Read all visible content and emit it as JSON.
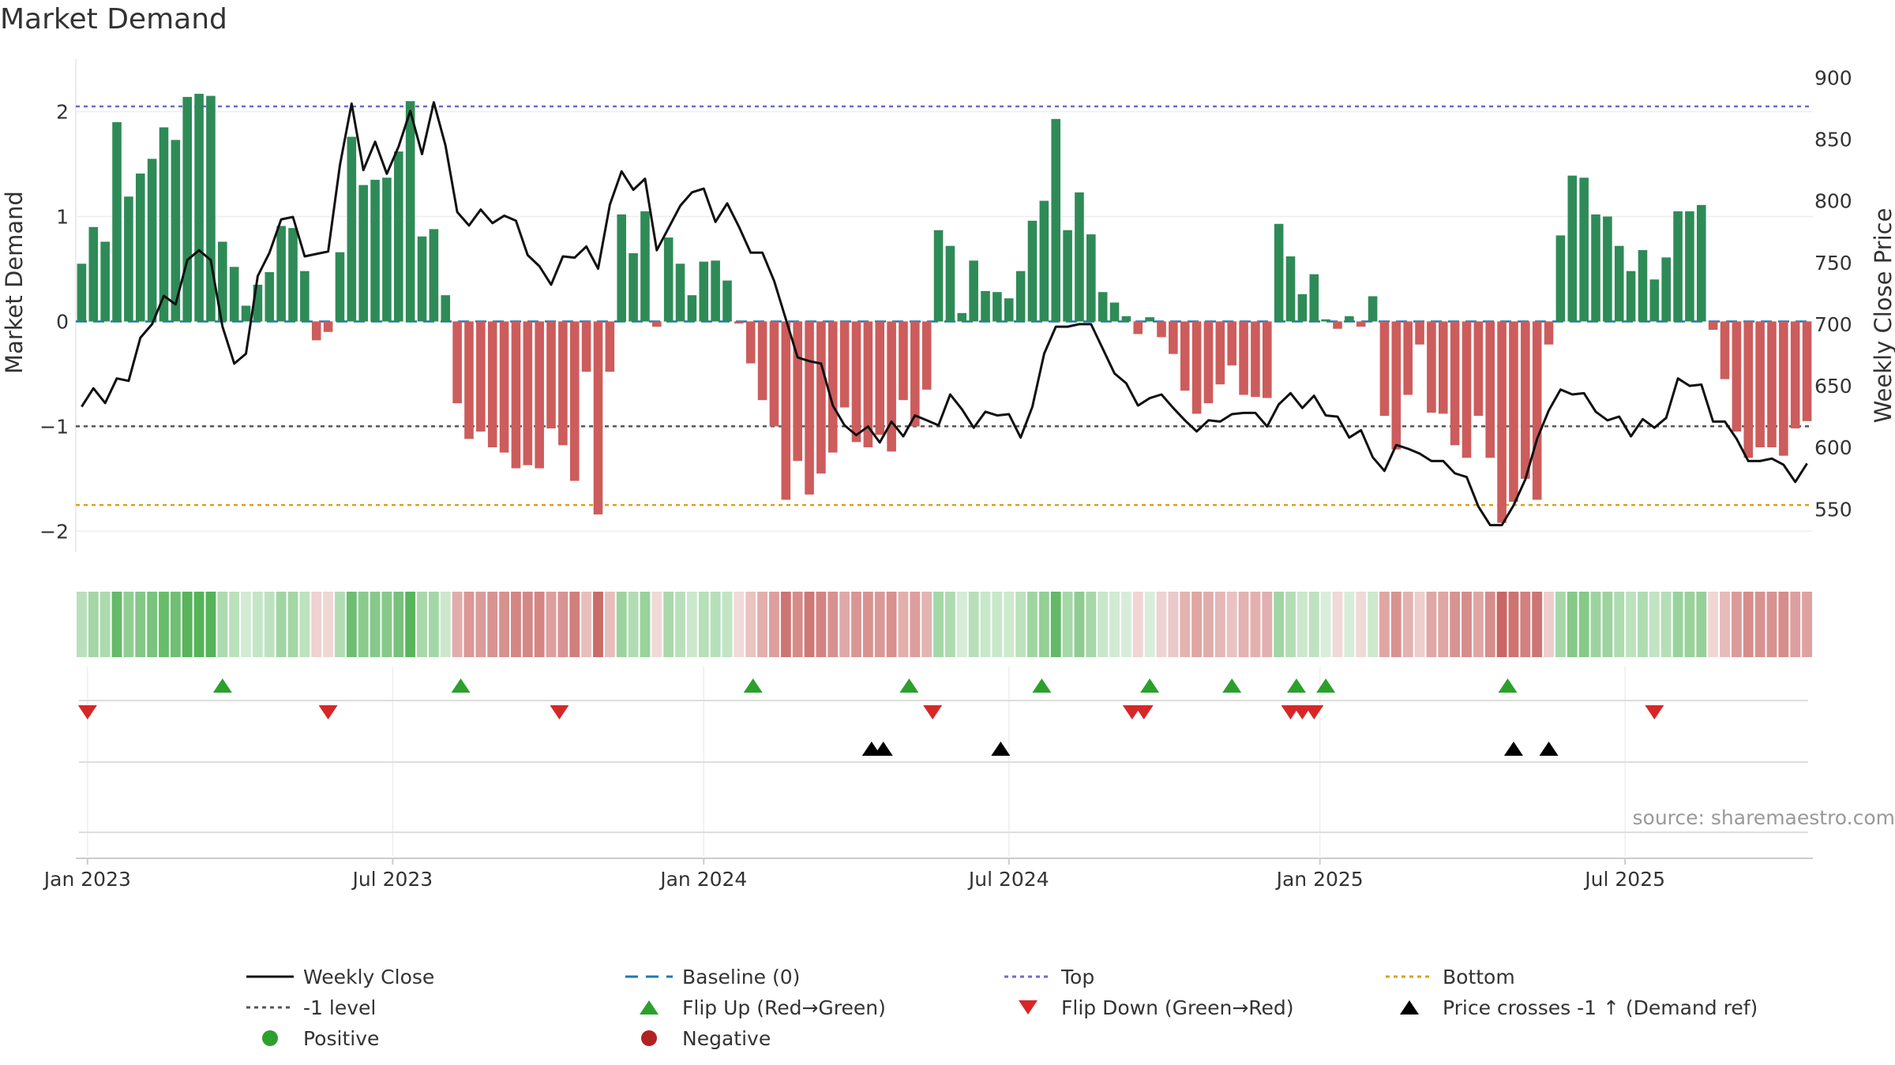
{
  "chart_data": {
    "type": "bar",
    "title": "Market Demand",
    "source": "source: sharemaestro.com",
    "ylabel": "Market Demand",
    "y2label": "Weekly Close Price",
    "ylim": [
      -2.2,
      2.5
    ],
    "y2lim": [
      515,
      915
    ],
    "yticks": [
      -2,
      -1,
      0,
      1,
      2
    ],
    "y2ticks": [
      550,
      600,
      650,
      700,
      750,
      800,
      850,
      900
    ],
    "x_ticks": [
      {
        "label": "Jan 2023",
        "week": 1
      },
      {
        "label": "Jul 2023",
        "week": 27
      },
      {
        "label": "Jan 2024",
        "week": 53.5
      },
      {
        "label": "Jul 2024",
        "week": 79.5
      },
      {
        "label": "Jan 2025",
        "week": 106
      },
      {
        "label": "Jul 2025",
        "week": 132
      }
    ],
    "levels": {
      "top": 2.05,
      "bottom": -1.75,
      "minus_one": -1.0,
      "baseline": 0
    },
    "demand": [
      0.55,
      0.9,
      0.76,
      1.9,
      1.19,
      1.41,
      1.55,
      1.85,
      1.73,
      2.14,
      2.17,
      2.15,
      0.76,
      0.52,
      0.15,
      0.35,
      0.47,
      0.91,
      0.89,
      0.48,
      -0.18,
      -0.1,
      0.66,
      1.76,
      1.3,
      1.35,
      1.37,
      1.62,
      2.1,
      0.81,
      0.88,
      0.25,
      -0.78,
      -1.12,
      -1.05,
      -1.2,
      -1.25,
      -1.4,
      -1.37,
      -1.4,
      -1.02,
      -1.18,
      -1.52,
      -0.48,
      -1.84,
      -0.48,
      1.02,
      0.65,
      1.05,
      -0.05,
      0.8,
      0.55,
      0.25,
      0.57,
      0.58,
      0.39,
      -0.02,
      -0.4,
      -0.75,
      -1.0,
      -1.7,
      -1.33,
      -1.65,
      -1.45,
      -1.25,
      -0.82,
      -1.15,
      -1.2,
      -1.08,
      -1.24,
      -0.75,
      -1.0,
      -0.65,
      0.87,
      0.72,
      0.08,
      0.58,
      0.29,
      0.28,
      0.22,
      0.48,
      0.96,
      1.15,
      1.93,
      0.87,
      1.23,
      0.83,
      0.28,
      0.18,
      0.05,
      -0.12,
      0.04,
      -0.15,
      -0.31,
      -0.66,
      -0.88,
      -0.78,
      -0.6,
      -0.42,
      -0.7,
      -0.72,
      -0.73,
      0.93,
      0.62,
      0.26,
      0.45,
      0.02,
      -0.07,
      0.05,
      -0.05,
      0.24,
      -0.9,
      -1.22,
      -0.7,
      -0.22,
      -0.87,
      -0.88,
      -1.18,
      -1.3,
      -0.9,
      -1.3,
      -1.92,
      -1.72,
      -1.5,
      -1.7,
      -0.22,
      0.82,
      1.39,
      1.37,
      1.02,
      1.0,
      0.72,
      0.48,
      0.68,
      0.4,
      0.61,
      1.05,
      1.05,
      1.11,
      -0.08,
      -0.55,
      -1.05,
      -1.3,
      -1.2,
      -1.2,
      -1.28,
      -1.02,
      -0.95
    ],
    "close": [
      633,
      648,
      636,
      656,
      654,
      689,
      700,
      723,
      716,
      752,
      760,
      752,
      698,
      668,
      676,
      739,
      758,
      785,
      787,
      755,
      757,
      759,
      829,
      879,
      825,
      848,
      822,
      844,
      873,
      838,
      880,
      845,
      791,
      780,
      793,
      782,
      788,
      784,
      756,
      747,
      732,
      755,
      754,
      763,
      745,
      797,
      824,
      809,
      818,
      760,
      778,
      796,
      807,
      810,
      783,
      798,
      779,
      758,
      758,
      735,
      704,
      673,
      670,
      668,
      634,
      618,
      610,
      617,
      604,
      621,
      609,
      626,
      622,
      618,
      643,
      631,
      616,
      629,
      626,
      627,
      608,
      633,
      676,
      698,
      698,
      700,
      700,
      680,
      660,
      652,
      634,
      640,
      643,
      632,
      622,
      613,
      622,
      621,
      627,
      628,
      628,
      617,
      635,
      644,
      632,
      642,
      626,
      625,
      608,
      614,
      592,
      581,
      602,
      599,
      595,
      589,
      589,
      579,
      576,
      552,
      537,
      537,
      553,
      574,
      607,
      630,
      647,
      643,
      644,
      629,
      622,
      625,
      609,
      623,
      616,
      624,
      656,
      650,
      651,
      621,
      621,
      607,
      589,
      589,
      591,
      586,
      572,
      587
    ],
    "flip_up_weeks": [
      12,
      32.3,
      57.2,
      70.5,
      81.8,
      91,
      98,
      103.5,
      106,
      121.5
    ],
    "flip_down_weeks": [
      0.5,
      21,
      40.7,
      72.5,
      89.5,
      90.5,
      103,
      104,
      105,
      134
    ],
    "price_cross_weeks": [
      67.3,
      68.3,
      78.3,
      122,
      125
    ],
    "legend": [
      {
        "label": "Weekly Close",
        "symbol": "line-solid",
        "color": "#111111"
      },
      {
        "label": "Baseline (0)",
        "symbol": "line-dashed",
        "color": "#1f77b4"
      },
      {
        "label": "Top",
        "symbol": "line-dotted",
        "color": "#6a6ad8"
      },
      {
        "label": "Bottom",
        "symbol": "line-dotted",
        "color": "#d9a21c"
      },
      {
        "label": "-1 level",
        "symbol": "line-dotted",
        "color": "#555555"
      },
      {
        "label": "Flip Up (Red→Green)",
        "symbol": "triangle-up",
        "color": "#2ca02c"
      },
      {
        "label": "Flip Down (Green→Red)",
        "symbol": "triangle-down",
        "color": "#d62728"
      },
      {
        "label": "Price crosses -1 ↑ (Demand ref)",
        "symbol": "triangle-up",
        "color": "#000000"
      },
      {
        "label": "Positive",
        "symbol": "circle",
        "color": "#2ca02c"
      },
      {
        "label": "Negative",
        "symbol": "circle",
        "color": "#b22222"
      }
    ],
    "colors": {
      "positive": "#2e8b57",
      "negative": "#cd5c5c",
      "line": "#111111",
      "heat_pos": "#4caf50",
      "heat_neg": "#c0504d"
    }
  }
}
